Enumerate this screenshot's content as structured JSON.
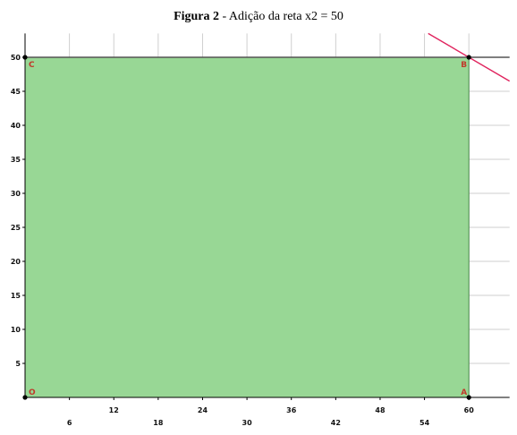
{
  "figure": {
    "label": "Figura 2",
    "separator": " - ",
    "caption": "Adição da reta x2 = 50"
  },
  "chart_data": {
    "type": "area",
    "title": "Figura 2 - Adição da reta x2 = 50",
    "xlim": [
      0,
      65.5
    ],
    "ylim": [
      0,
      53.5
    ],
    "x_ticks_row1": [
      12,
      24,
      36,
      48,
      60
    ],
    "x_ticks_row2": [
      6,
      18,
      30,
      42,
      54
    ],
    "y_ticks": [
      5,
      10,
      15,
      20,
      25,
      30,
      35,
      40,
      45,
      50
    ],
    "feasible_region": {
      "vertices": [
        {
          "name": "O",
          "x": 0,
          "y": 0
        },
        {
          "name": "A",
          "x": 60,
          "y": 0
        },
        {
          "name": "B",
          "x": 60,
          "y": 50
        },
        {
          "name": "C",
          "x": 0,
          "y": 50
        }
      ],
      "fill": "#98d795",
      "stroke": "#4a8a4a"
    },
    "constraint_lines": [
      {
        "label": "x2 = 50",
        "from": {
          "x": 0,
          "y": 50
        },
        "to": {
          "x": 65.5,
          "y": 50
        },
        "color": "#555555"
      },
      {
        "label": "",
        "from": {
          "x": 54.5,
          "y": 53.5
        },
        "to": {
          "x": 65.5,
          "y": 46.5
        },
        "color": "#e0245e"
      }
    ],
    "grid": true,
    "colors": {
      "grid": "#cfcfcf",
      "axis": "#000000",
      "vertex_label": "#c0392b",
      "point": "#000000"
    }
  }
}
